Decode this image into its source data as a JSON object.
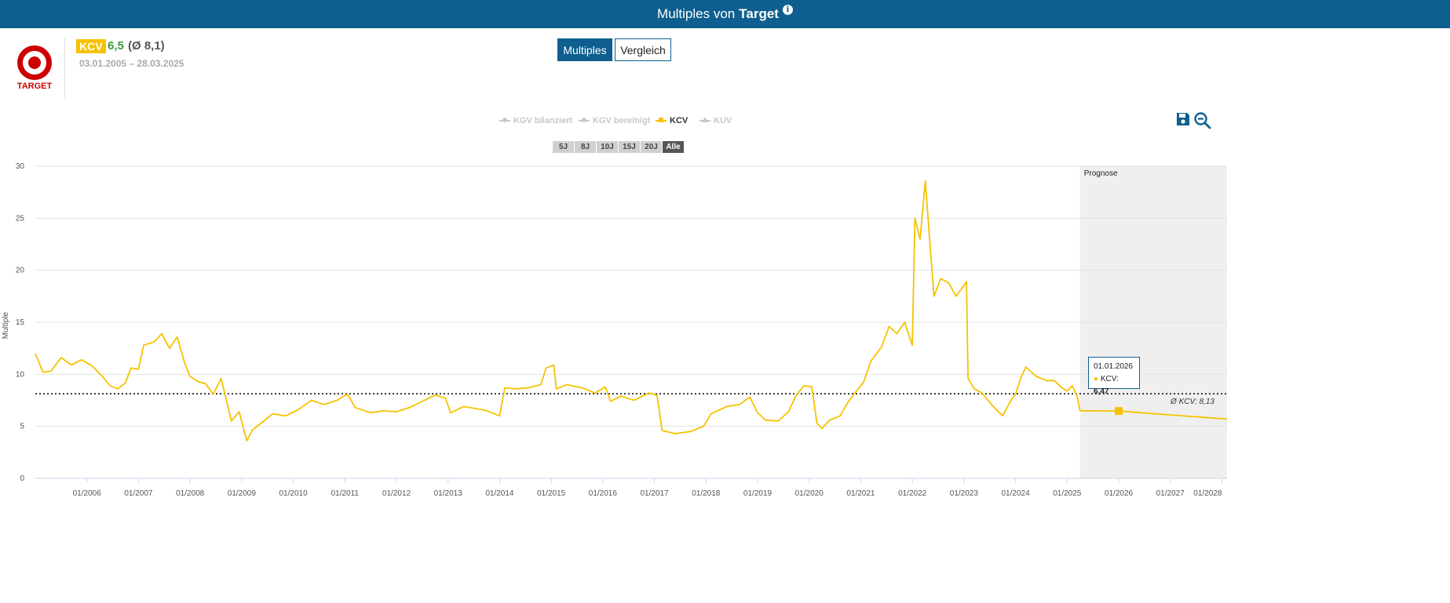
{
  "header": {
    "title_prefix": "Multiples von",
    "title_company": "Target",
    "info_icon": "info-icon"
  },
  "company": {
    "logo_text": "TARGET",
    "logo_icon": "target-bullseye-logo",
    "metric_badge": "KCV",
    "metric_value": "6,5",
    "metric_average": "(Ø 8,1)",
    "date_range": "03.01.2005 – 28.03.2025"
  },
  "tabs": {
    "multiples": "Multiples",
    "vergleich": "Vergleich",
    "active": "Multiples"
  },
  "legend": [
    {
      "label": "KGV bilanziert",
      "active": false
    },
    {
      "label": "KGV bereinigt",
      "active": false
    },
    {
      "label": "KCV",
      "active": true
    },
    {
      "label": "KUV",
      "active": false
    }
  ],
  "ranges": [
    "5J",
    "8J",
    "10J",
    "15J",
    "20J",
    "Alle"
  ],
  "active_range": "Alle",
  "toolbar": {
    "save_icon": "save-icon",
    "zoom_icon": "zoom-out-icon"
  },
  "colors": {
    "brand": "#0e5f8f",
    "series": "#f6c200",
    "forecast_bg": "#efefef",
    "positive": "#3b9b3b",
    "logo_red": "#cc0000"
  },
  "tooltip": {
    "date": "01.01.2026",
    "label": "KCV:",
    "value": "6,47"
  },
  "chart_data": {
    "type": "line",
    "ylabel": "Multiple",
    "ylim": [
      0,
      30
    ],
    "yticks": [
      0,
      5,
      10,
      15,
      20,
      25,
      30
    ],
    "xlim": [
      2005.0,
      2028.1
    ],
    "xticks": [
      {
        "x": 2006.0,
        "label": "01/2006"
      },
      {
        "x": 2007.0,
        "label": "01/2007"
      },
      {
        "x": 2008.0,
        "label": "01/2008"
      },
      {
        "x": 2009.0,
        "label": "01/2009"
      },
      {
        "x": 2010.0,
        "label": "01/2010"
      },
      {
        "x": 2011.0,
        "label": "01/2011"
      },
      {
        "x": 2012.0,
        "label": "01/2012"
      },
      {
        "x": 2013.0,
        "label": "01/2013"
      },
      {
        "x": 2014.0,
        "label": "01/2014"
      },
      {
        "x": 2015.0,
        "label": "01/2015"
      },
      {
        "x": 2016.0,
        "label": "01/2016"
      },
      {
        "x": 2017.0,
        "label": "01/2017"
      },
      {
        "x": 2018.0,
        "label": "01/2018"
      },
      {
        "x": 2019.0,
        "label": "01/2019"
      },
      {
        "x": 2020.0,
        "label": "01/2020"
      },
      {
        "x": 2021.0,
        "label": "01/2021"
      },
      {
        "x": 2022.0,
        "label": "01/2022"
      },
      {
        "x": 2023.0,
        "label": "01/2023"
      },
      {
        "x": 2024.0,
        "label": "01/2024"
      },
      {
        "x": 2025.0,
        "label": "01/2025"
      },
      {
        "x": 2026.0,
        "label": "01/2026"
      },
      {
        "x": 2027.0,
        "label": "01/2027"
      },
      {
        "x": 2028.0,
        "label": "01/2028"
      }
    ],
    "average": {
      "value": 8.13,
      "label": "Ø KCV: 8,13"
    },
    "forecast": {
      "start": 2025.25,
      "label": "Prognose"
    },
    "series": [
      {
        "name": "KCV",
        "points": [
          [
            2005.0,
            12.0
          ],
          [
            2005.15,
            10.2
          ],
          [
            2005.3,
            10.3
          ],
          [
            2005.5,
            11.6
          ],
          [
            2005.7,
            10.9
          ],
          [
            2005.9,
            11.4
          ],
          [
            2006.1,
            10.8
          ],
          [
            2006.3,
            9.8
          ],
          [
            2006.45,
            8.9
          ],
          [
            2006.6,
            8.6
          ],
          [
            2006.75,
            9.2
          ],
          [
            2006.85,
            10.6
          ],
          [
            2007.0,
            10.5
          ],
          [
            2007.1,
            12.8
          ],
          [
            2007.3,
            13.1
          ],
          [
            2007.45,
            13.9
          ],
          [
            2007.6,
            12.5
          ],
          [
            2007.75,
            13.6
          ],
          [
            2007.9,
            11.0
          ],
          [
            2008.0,
            9.8
          ],
          [
            2008.15,
            9.3
          ],
          [
            2008.3,
            9.1
          ],
          [
            2008.45,
            8.1
          ],
          [
            2008.6,
            9.6
          ],
          [
            2008.7,
            7.6
          ],
          [
            2008.8,
            5.5
          ],
          [
            2008.95,
            6.4
          ],
          [
            2009.1,
            3.6
          ],
          [
            2009.2,
            4.6
          ],
          [
            2009.35,
            5.2
          ],
          [
            2009.6,
            6.2
          ],
          [
            2009.85,
            6.0
          ],
          [
            2010.1,
            6.6
          ],
          [
            2010.35,
            7.5
          ],
          [
            2010.6,
            7.1
          ],
          [
            2010.85,
            7.5
          ],
          [
            2011.05,
            8.1
          ],
          [
            2011.2,
            6.8
          ],
          [
            2011.5,
            6.3
          ],
          [
            2011.75,
            6.5
          ],
          [
            2012.0,
            6.4
          ],
          [
            2012.25,
            6.8
          ],
          [
            2012.5,
            7.4
          ],
          [
            2012.75,
            8.0
          ],
          [
            2012.95,
            7.7
          ],
          [
            2013.05,
            6.3
          ],
          [
            2013.3,
            6.9
          ],
          [
            2013.55,
            6.7
          ],
          [
            2013.75,
            6.5
          ],
          [
            2014.0,
            6.0
          ],
          [
            2014.1,
            8.7
          ],
          [
            2014.3,
            8.6
          ],
          [
            2014.55,
            8.7
          ],
          [
            2014.8,
            9.0
          ],
          [
            2014.9,
            10.6
          ],
          [
            2015.05,
            10.9
          ],
          [
            2015.1,
            8.6
          ],
          [
            2015.3,
            9.0
          ],
          [
            2015.6,
            8.7
          ],
          [
            2015.85,
            8.2
          ],
          [
            2016.05,
            8.8
          ],
          [
            2016.15,
            7.4
          ],
          [
            2016.35,
            7.9
          ],
          [
            2016.6,
            7.5
          ],
          [
            2016.9,
            8.2
          ],
          [
            2017.05,
            8.0
          ],
          [
            2017.15,
            4.6
          ],
          [
            2017.4,
            4.3
          ],
          [
            2017.7,
            4.5
          ],
          [
            2017.95,
            5.0
          ],
          [
            2018.1,
            6.2
          ],
          [
            2018.4,
            6.9
          ],
          [
            2018.65,
            7.1
          ],
          [
            2018.85,
            7.8
          ],
          [
            2019.0,
            6.3
          ],
          [
            2019.15,
            5.6
          ],
          [
            2019.4,
            5.5
          ],
          [
            2019.6,
            6.4
          ],
          [
            2019.75,
            8.0
          ],
          [
            2019.9,
            8.9
          ],
          [
            2020.05,
            8.8
          ],
          [
            2020.15,
            5.3
          ],
          [
            2020.25,
            4.8
          ],
          [
            2020.4,
            5.6
          ],
          [
            2020.6,
            6.0
          ],
          [
            2020.75,
            7.3
          ],
          [
            2020.9,
            8.3
          ],
          [
            2021.05,
            9.2
          ],
          [
            2021.2,
            11.3
          ],
          [
            2021.4,
            12.6
          ],
          [
            2021.55,
            14.6
          ],
          [
            2021.7,
            13.9
          ],
          [
            2021.85,
            15.0
          ],
          [
            2022.0,
            12.8
          ],
          [
            2022.05,
            25.0
          ],
          [
            2022.15,
            23.0
          ],
          [
            2022.25,
            28.6
          ],
          [
            2022.35,
            22.0
          ],
          [
            2022.42,
            17.5
          ],
          [
            2022.55,
            19.2
          ],
          [
            2022.7,
            18.8
          ],
          [
            2022.85,
            17.5
          ],
          [
            2023.05,
            18.9
          ],
          [
            2023.08,
            9.6
          ],
          [
            2023.2,
            8.6
          ],
          [
            2023.35,
            8.2
          ],
          [
            2023.55,
            7.0
          ],
          [
            2023.75,
            6.0
          ],
          [
            2023.9,
            7.4
          ],
          [
            2024.0,
            8.1
          ],
          [
            2024.1,
            9.6
          ],
          [
            2024.2,
            10.7
          ],
          [
            2024.4,
            9.8
          ],
          [
            2024.6,
            9.4
          ],
          [
            2024.75,
            9.4
          ],
          [
            2024.9,
            8.7
          ],
          [
            2025.0,
            8.4
          ],
          [
            2025.1,
            8.9
          ],
          [
            2025.2,
            7.8
          ],
          [
            2025.25,
            6.5
          ]
        ]
      },
      {
        "name": "KCV",
        "forecast": true,
        "points": [
          [
            2025.25,
            6.5
          ],
          [
            2026.0,
            6.47
          ],
          [
            2027.0,
            6.1
          ],
          [
            2028.1,
            5.7
          ]
        ]
      }
    ],
    "highlight": {
      "x": 2026.0,
      "y": 6.47
    }
  }
}
